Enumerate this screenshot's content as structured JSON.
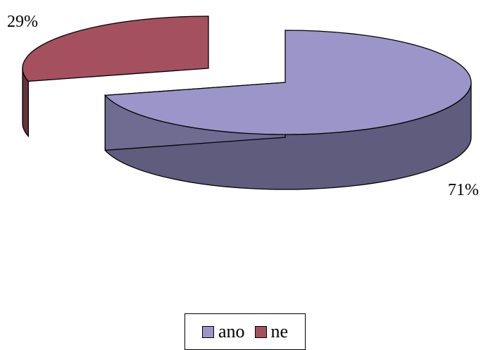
{
  "chart_data": {
    "type": "pie",
    "style": "3d-exploded",
    "categories": [
      "ano",
      "ne"
    ],
    "values": [
      71,
      29
    ],
    "data_labels": [
      "71%",
      "29%"
    ],
    "colors": {
      "ano": "#9b95c9",
      "ne": "#a5505e"
    },
    "title": "",
    "legend": {
      "placement": "bottom",
      "entries": [
        "ano",
        "ne"
      ]
    }
  }
}
